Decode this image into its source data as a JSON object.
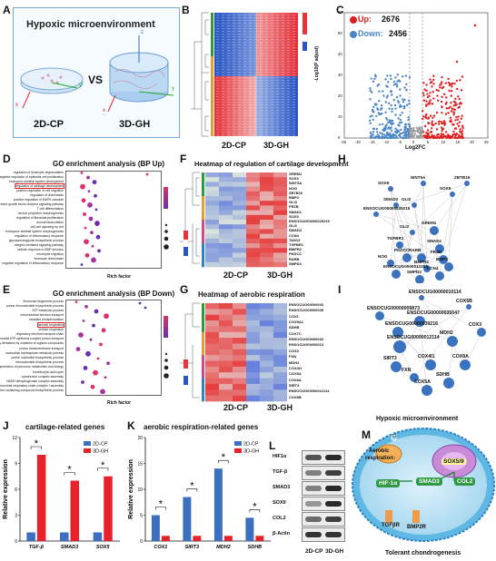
{
  "panels": {
    "A": {
      "label": "A",
      "title": "Hypoxic microenvironment",
      "vs": "VS",
      "left": "2D-CP",
      "right": "3D-GH",
      "ax_x": "x",
      "ax_y": "y",
      "ax_z": "z"
    },
    "B": {
      "label": "B",
      "col_left": "2D-CP",
      "col_right": "3D-GH"
    },
    "C": {
      "label": "C",
      "up_label": "Up:",
      "up_count": "2676",
      "down_label": "Down:",
      "down_count": "2456",
      "ylabel": "-Log10(P adjust)",
      "xlabel": "Log2FC",
      "xticks": [
        "-25",
        "-20",
        "-15",
        "-10",
        "-5",
        "0",
        "5",
        "10",
        "15",
        "20",
        "25"
      ],
      "yticks": [
        "0",
        "10",
        "20",
        "30",
        "40",
        "50",
        "60"
      ]
    },
    "D": {
      "label": "D",
      "title": "GO enrichment analysis (BP Up)",
      "highlight": "regulation of cartilage development",
      "xlabel": "Rich factor",
      "terms": [
        "regulation of leukocyte degranulation",
        "negative regulation of epithelial cell proliferation",
        "embryonic skeletal system development",
        "regulation of cartilage development",
        "positive regulation of cell migration",
        "regulation of chemotaxis",
        "positive regulation of MAPK cascade",
        "platelet-derived growth factor receptor signaling pathway",
        "T cell differentiation",
        "neuron projection morphogenesis",
        "regulation of fibroblast proliferation",
        "axonal fasciculation",
        "cell-cell signaling by wnt",
        "embryonic skeletal system morphogenesis",
        "regulation of inflammatory response",
        "glycosaminoglycan biosynthetic process",
        "integrin-mediated signaling pathway",
        "cellular response to BMP stimulus",
        "neutrophil migration",
        "leukocyte chemotaxis",
        "negative regulation of inflammatory response"
      ]
    },
    "E": {
      "label": "E",
      "title": "GO enrichment analysis (BP Down)",
      "highlight": "aerobic respiration",
      "xlabel": "Rich factor",
      "terms": [
        "ribosomal biogenesis process",
        "purine ribonucleotide biosynthetic process",
        "ATP metabolic process",
        "mitochondrial electron transport",
        "oxidative phosphorylation",
        "aerobic respiration",
        "cellular respiration",
        "respiratory electron transport chain",
        "mitochondrial ATP synthesis coupled proton transport",
        "energy derivation by oxidation of organic compounds",
        "proton transmembrane transport",
        "nucleoside triphosphate metabolic process",
        "purine nucleotide biosynthetic process",
        "ribonucleotide biosynthetic process",
        "generation of precursor metabolites and energy",
        "tricarboxylic acid cycle",
        "cytochrome complex assembly",
        "NADH dehydrogenase complex assembly",
        "mitochondrial respiratory chain complex I assembly",
        "purine-containing compound biosynthetic process"
      ]
    },
    "F": {
      "label": "F",
      "title": "Heatmap of regulation of cartilage development",
      "col_left": "2D-CP",
      "col_right": "3D-GH",
      "genes": [
        "GREM1",
        "SOX9",
        "WNT5A",
        "NOG",
        "ZBTB16",
        "BMP2",
        "GLI3",
        "FRZB",
        "SMAD1",
        "SOX5",
        "ENSOCUG00000025215",
        "GLI2",
        "SMAD3",
        "CCN4",
        "TAN1Z",
        "TGFBR1",
        "BMPR2",
        "PKDCC",
        "RARB",
        "SMPD3"
      ]
    },
    "G": {
      "label": "G",
      "title": "Heatmap of aerobic respiration",
      "col_left": "2D-CP",
      "col_right": "3D-GH",
      "genes": [
        "ENSOCUG00000033",
        "ENSOCUG00000035",
        "COX1",
        "COX5A1",
        "SDHB",
        "COX7C",
        "ENSOCUG00000033",
        "ENSOCUG00000013",
        "COX3",
        "FXN",
        "MDH2",
        "COX4I1",
        "COX5A",
        "COX8A",
        "SIRT3",
        "ENSOCUG00000012114",
        "COX8B"
      ]
    },
    "H": {
      "label": "H",
      "nodes": [
        "WNT5A",
        "ZBTB16",
        "SOX9",
        "SOX5",
        "SMAD3",
        "GLI3",
        "ENSOCUG00000025215",
        "GLI2",
        "TGFBR1",
        "SMAD1",
        "RARB",
        "GREM1",
        "PKDCC",
        "BMP2",
        "NOG",
        "BMPR2",
        "FRZB",
        "ENSOCUG0000012254",
        "CCN4",
        "SMPD3"
      ]
    },
    "I": {
      "label": "I",
      "nodes": [
        "ENSOCUG00000010114",
        "COX5B",
        "ENSOCUG00000009873",
        "ENSOCUG00000035047",
        "ENSOCUG00000039216",
        "COX3",
        "ENSOCUG00000012114",
        "MDH2",
        "SIRT3",
        "COX4I1",
        "COX8A",
        "FXN",
        "SDHB",
        "COX5A"
      ]
    },
    "J": {
      "label": "J",
      "title": "cartilage-related genes",
      "ylabel": "Relative expression",
      "legend": [
        "2D-CP",
        "3D-GH"
      ],
      "star": "*",
      "chart_data": {
        "type": "bar",
        "categories": [
          "TGF-β",
          "SMAD3",
          "SOX5"
        ],
        "series": [
          {
            "name": "2D-CP",
            "values": [
              1,
              1,
              1
            ]
          },
          {
            "name": "3D-GH",
            "values": [
              10,
              7,
              7.5
            ]
          }
        ],
        "ylim": [
          0,
          12
        ],
        "yticks": [
          "0",
          "3",
          "6",
          "9",
          "12"
        ],
        "ylabel": "Relative expression"
      }
    },
    "K": {
      "label": "K",
      "title": "aerobic respiration-related genes",
      "ylabel": "Relative expression",
      "legend": [
        "2D-CP",
        "3D-GH"
      ],
      "star": "*",
      "chart_data": {
        "type": "bar",
        "categories": [
          "COX1",
          "SIRT3",
          "MDH2",
          "SDHB"
        ],
        "series": [
          {
            "name": "2D-CP",
            "values": [
              5,
              8.5,
              14,
              4.5
            ]
          },
          {
            "name": "3D-GH",
            "values": [
              1,
              1,
              1,
              1
            ]
          }
        ],
        "ylim": [
          0,
          20
        ],
        "yticks": [
          "0",
          "5",
          "10",
          "15",
          "20"
        ],
        "ylabel": "Relative expression"
      }
    },
    "L": {
      "label": "L",
      "rows": [
        "HIF1α",
        "TGF-β",
        "SMAD3",
        "SOX9",
        "COL2",
        "β-Actin"
      ],
      "col_left": "2D-CP",
      "col_right": "3D-GH"
    },
    "M": {
      "label": "M",
      "top": "Hypoxic microenvironment",
      "bottom": "Tolerant chondrogenesis",
      "o2": "O₂",
      "aerobic1": "Aerobic",
      "aerobic2": "respiration↓",
      "sox": "SOX5/9",
      "hif": "HIF-1α",
      "smad": "SMAD3",
      "col": "COL2",
      "tgf": "TGFβR",
      "bmp": "BMP2R"
    }
  },
  "colors": {
    "red": "#e8222a",
    "blue": "#3b6fbf",
    "up": "#e02020",
    "down": "#4a86c8"
  }
}
